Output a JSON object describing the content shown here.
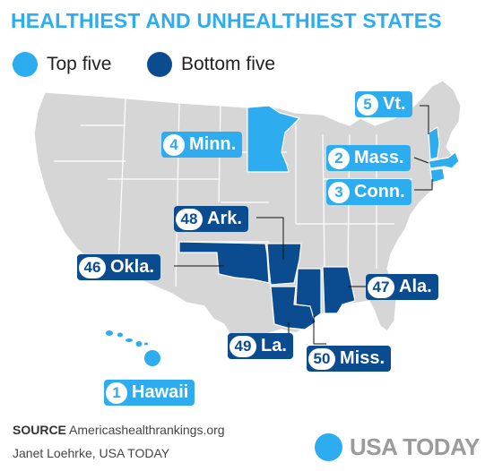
{
  "title": "HEALTHIEST AND UNHEALTHIEST STATES",
  "legend": {
    "top_label": "Top five",
    "bottom_label": "Bottom five"
  },
  "colors": {
    "top": "#2eacf0",
    "bottom": "#0b4c91",
    "land": "#d6d6d6",
    "border": "#ffffff"
  },
  "labels": [
    {
      "id": "vt",
      "rank": "5",
      "name": "Vt.",
      "group": "top"
    },
    {
      "id": "minn",
      "rank": "4",
      "name": "Minn.",
      "group": "top"
    },
    {
      "id": "mass",
      "rank": "2",
      "name": "Mass.",
      "group": "top"
    },
    {
      "id": "conn",
      "rank": "3",
      "name": "Conn.",
      "group": "top"
    },
    {
      "id": "ark",
      "rank": "48",
      "name": "Ark.",
      "group": "bottom"
    },
    {
      "id": "okla",
      "rank": "46",
      "name": "Okla.",
      "group": "bottom"
    },
    {
      "id": "ala",
      "rank": "47",
      "name": "Ala.",
      "group": "bottom"
    },
    {
      "id": "la",
      "rank": "49",
      "name": "La.",
      "group": "bottom"
    },
    {
      "id": "miss",
      "rank": "50",
      "name": "Miss.",
      "group": "bottom"
    },
    {
      "id": "hawaii",
      "rank": "1",
      "name": "Hawaii",
      "group": "top"
    }
  ],
  "source_label": "SOURCE",
  "source_text": "Americashealthrankings.org",
  "credit": "Janet Loehrke, USA TODAY",
  "logo_text": "USA TODAY"
}
